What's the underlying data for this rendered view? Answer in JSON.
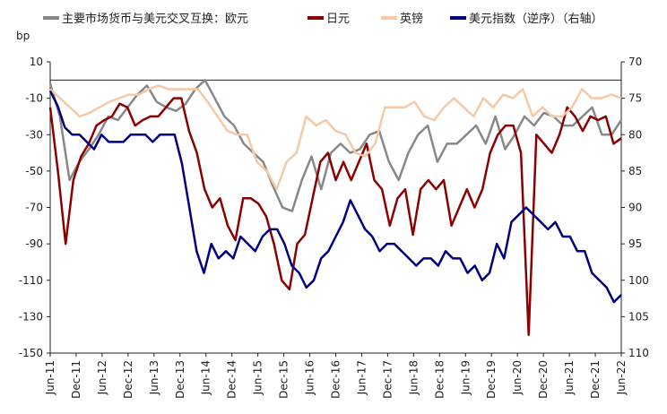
{
  "chart_data": {
    "type": "line",
    "left_axis": {
      "unit": "bp",
      "ylim": [
        -150,
        10
      ],
      "ticks": [
        10,
        -10,
        -30,
        -50,
        -70,
        -90,
        -110,
        -130,
        -150
      ]
    },
    "right_axis": {
      "ylim": [
        70,
        110
      ],
      "inverted": true,
      "ticks": [
        70,
        75,
        80,
        85,
        90,
        95,
        100,
        105,
        110
      ]
    },
    "x_ticks": [
      "Jun-11",
      "Dec-11",
      "Jun-12",
      "Dec-12",
      "Jun-13",
      "Dec-13",
      "Jun-14",
      "Dec-14",
      "Jun-15",
      "Dec-15",
      "Jun-16",
      "Dec-16",
      "Jun-17",
      "Dec-17",
      "Jun-18",
      "Dec-18",
      "Jun-19",
      "Dec-19",
      "Jun-20",
      "Dec-20",
      "Jun-21",
      "Dec-21",
      "Jun-22"
    ],
    "series": [
      {
        "name": "主要市场货币与美元交叉互换：欧元",
        "color": "#888888",
        "axis": "left",
        "values": [
          -2,
          -20,
          -55,
          -45,
          -38,
          -30,
          -20,
          -22,
          -15,
          -8,
          -3,
          -12,
          -15,
          -17,
          -13,
          -5,
          0,
          -10,
          -20,
          -25,
          -35,
          -40,
          -45,
          -58,
          -70,
          -72,
          -55,
          -42,
          -60,
          -40,
          -35,
          -40,
          -38,
          -30,
          -28,
          -45,
          -55,
          -40,
          -30,
          -25,
          -45,
          -35,
          -35,
          -30,
          -25,
          -35,
          -20,
          -38,
          -30,
          -20,
          -25,
          -18,
          -20,
          -25,
          -25,
          -20,
          -15,
          -30,
          -30,
          -22
        ]
      },
      {
        "name": "日元",
        "color": "#8b0000",
        "axis": "left",
        "values": [
          -15,
          -50,
          -90,
          -55,
          -42,
          -35,
          -25,
          -22,
          -20,
          -13,
          -15,
          -25,
          -22,
          -20,
          -20,
          -15,
          -10,
          -10,
          -28,
          -40,
          -60,
          -70,
          -65,
          -80,
          -88,
          -65,
          -65,
          -68,
          -75,
          -90,
          -110,
          -115,
          -90,
          -85,
          -65,
          -45,
          -40,
          -55,
          -45,
          -55,
          -45,
          -35,
          -55,
          -60,
          -80,
          -65,
          -60,
          -85,
          -60,
          -55,
          -60,
          -55,
          -80,
          -70,
          -60,
          -70,
          -60,
          -40,
          -30,
          -25,
          -25,
          -40,
          -140,
          -30,
          -35,
          -40,
          -30,
          -15,
          -20,
          -28,
          -20,
          -22,
          -20,
          -35,
          -32
        ]
      },
      {
        "name": "英镑",
        "color": "#f6c9a6",
        "axis": "left",
        "values": [
          -5,
          -10,
          -15,
          -20,
          -18,
          -15,
          -12,
          -10,
          -8,
          -8,
          -5,
          -3,
          -5,
          -5,
          -5,
          -5,
          -12,
          -20,
          -28,
          -30,
          -30,
          -45,
          -50,
          -60,
          -45,
          -40,
          -20,
          -25,
          -22,
          -28,
          -30,
          -40,
          -42,
          -35,
          -15,
          -15,
          -15,
          -12,
          -20,
          -22,
          -15,
          -10,
          -15,
          -20,
          -10,
          -15,
          -8,
          -10,
          -5,
          -20,
          -15,
          -20,
          -20,
          -15,
          -5,
          -10,
          -10,
          -8,
          -10
        ]
      },
      {
        "name": "美元指数（逆序）（右轴）",
        "color": "#000080",
        "axis": "right",
        "values": [
          74,
          76,
          79,
          80,
          80,
          81,
          82,
          80,
          81,
          81,
          81,
          80,
          80,
          80,
          81,
          80,
          80,
          80,
          84,
          90,
          96,
          99,
          95,
          97,
          96,
          97,
          94,
          95,
          96,
          94,
          93,
          93,
          95,
          98,
          99,
          101,
          100,
          97,
          96,
          94,
          92,
          89,
          91,
          93,
          94,
          96,
          95,
          95,
          96,
          97,
          98,
          97,
          97,
          98,
          96,
          97,
          97,
          99,
          98,
          100,
          99,
          95,
          97,
          92,
          91,
          90,
          91,
          92,
          93,
          92,
          94,
          94,
          96,
          96,
          99,
          100,
          101,
          103,
          102
        ]
      }
    ]
  }
}
